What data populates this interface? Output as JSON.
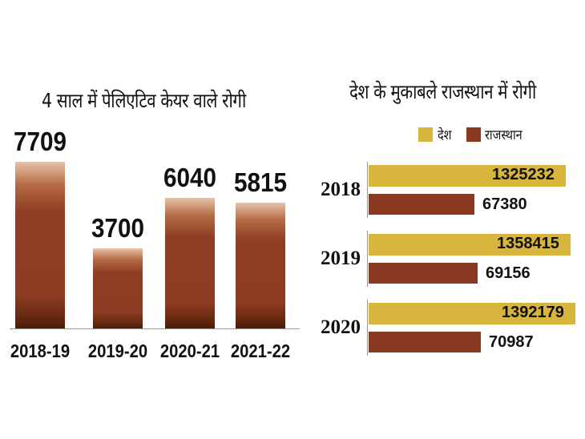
{
  "chart_data": [
    {
      "type": "bar",
      "title": "4 साल में पेलिएटिव केयर वाले रोगी",
      "categories": [
        "2018-19",
        "2019-20",
        "2020-21",
        "2021-22"
      ],
      "values": [
        7709,
        3700,
        6040,
        5815
      ],
      "value_labels": [
        "7709",
        "3700",
        "6040",
        "5815"
      ],
      "ylim": [
        0,
        7709
      ],
      "grid": false,
      "colors": {
        "bar": "#8c3c20"
      }
    },
    {
      "type": "bar",
      "orientation": "horizontal",
      "title": "देश के मुकाबले राजस्थान में रोगी",
      "categories": [
        "2018",
        "2019",
        "2020"
      ],
      "series": [
        {
          "name": "देश",
          "color": "#d8b63e",
          "values": [
            1325232,
            1358415,
            1392179
          ],
          "labels": [
            "1325232",
            "1358415",
            "1392179"
          ]
        },
        {
          "name": "राजस्थान",
          "color": "#8b3a22",
          "values": [
            67380,
            69156,
            70987
          ],
          "labels": [
            "67380",
            "69156",
            "70987"
          ]
        }
      ],
      "legend_position": "top",
      "grid": false
    }
  ]
}
